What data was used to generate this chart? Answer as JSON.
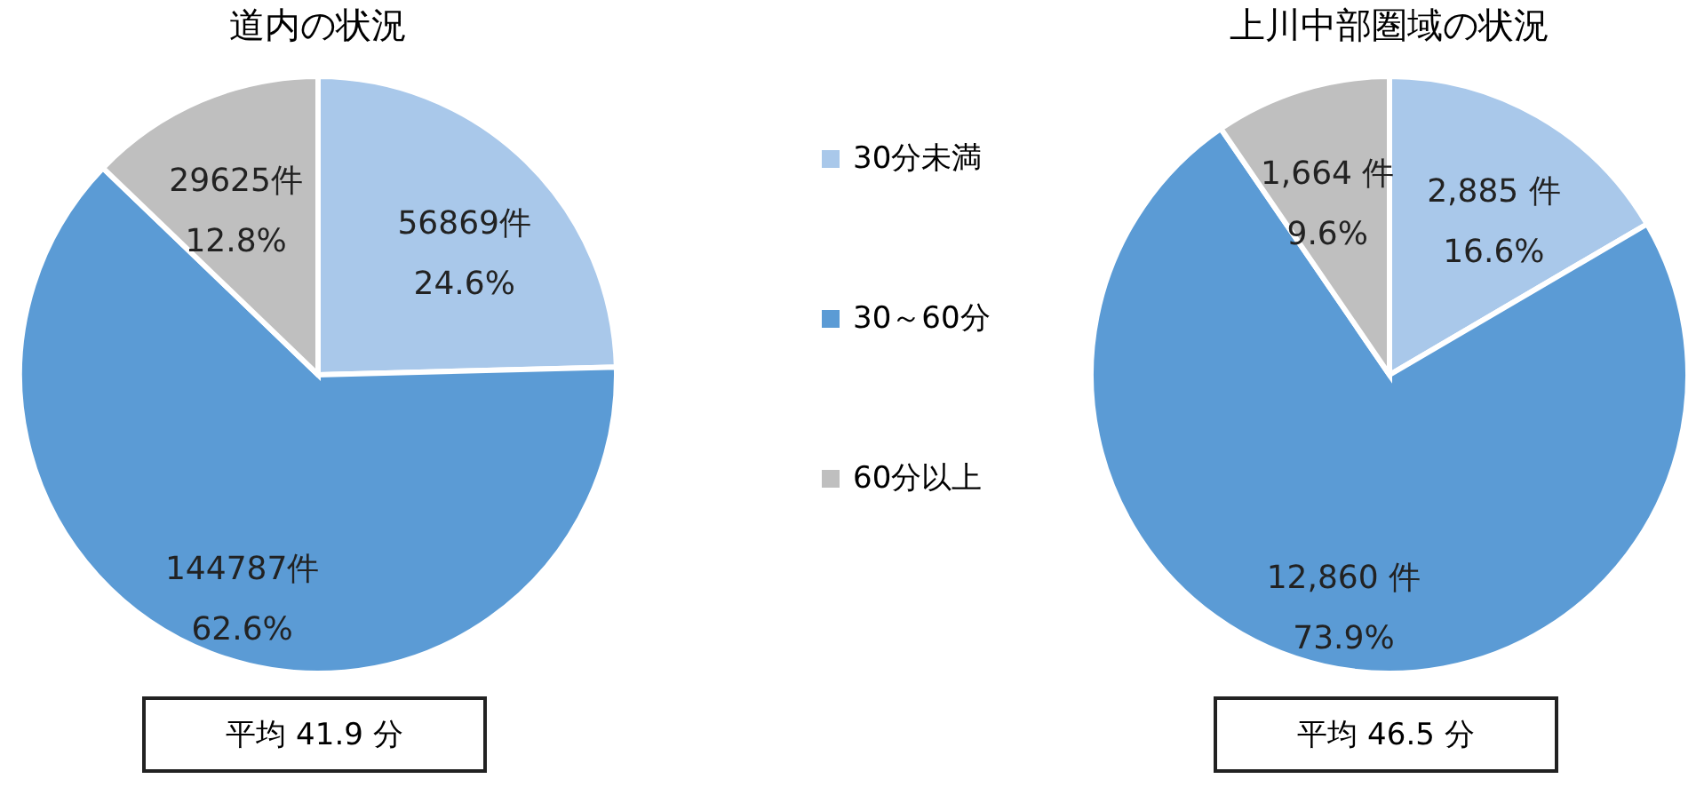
{
  "chart_data": [
    {
      "type": "pie",
      "title": "道内の状況",
      "categories": [
        "30分未満",
        "30～60分",
        "60分以上"
      ],
      "values": [
        56869,
        144787,
        29625
      ],
      "colors": [
        "#a9c8ea",
        "#5b9bd5",
        "#bfbfbf"
      ],
      "value_labels": [
        "56869件\n24.6%",
        "144787件\n62.6%",
        "29625件\n12.8%"
      ],
      "legend": "right",
      "annotations": [
        "平均 41.9 分"
      ]
    },
    {
      "type": "pie",
      "title": "上川中部圏域の状況",
      "categories": [
        null,
        null,
        null
      ],
      "values": [
        2885,
        12860,
        1664
      ],
      "colors": [
        "#a9c8ea",
        "#5b9bd5",
        "#bfbfbf"
      ],
      "value_labels": [
        "2,885 件\n16.6%",
        "12,860 件\n73.9%",
        "1,664 件\n9.6%"
      ],
      "annotations": [
        "平均 46.5 分"
      ]
    }
  ]
}
